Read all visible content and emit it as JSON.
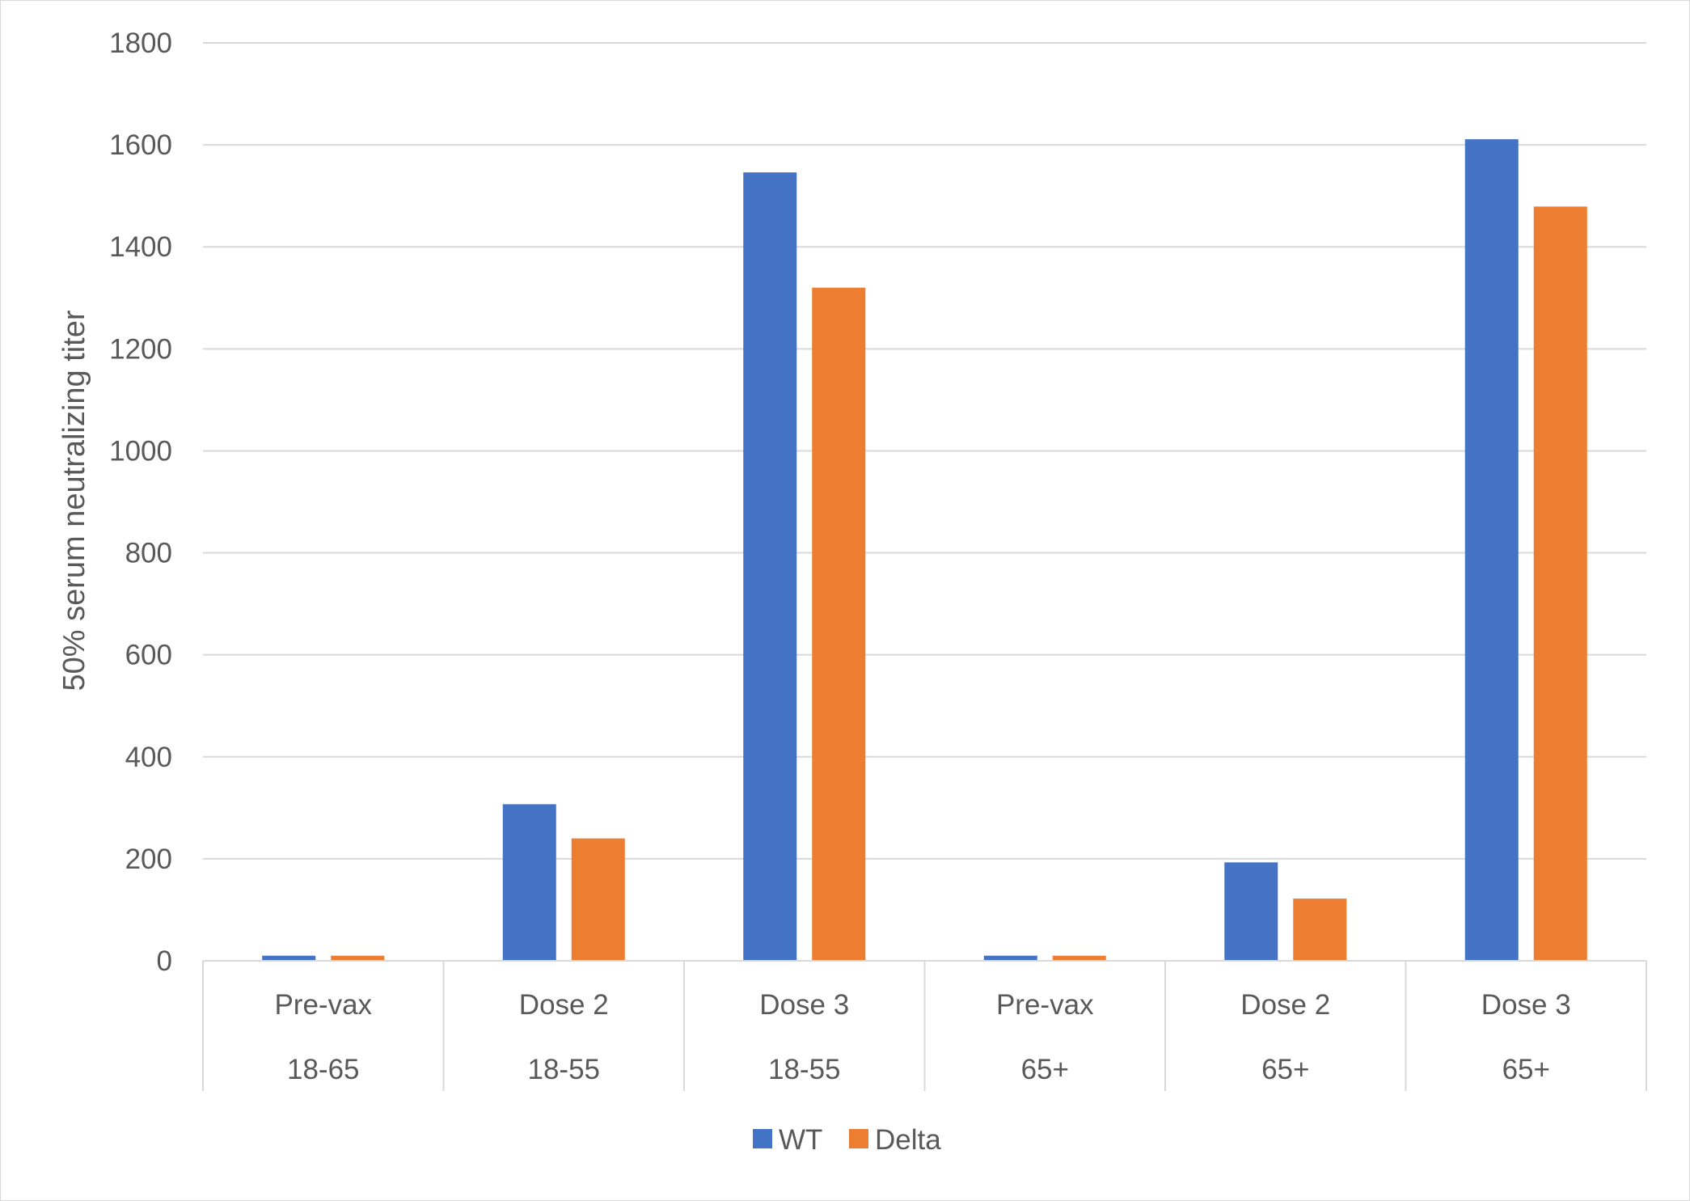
{
  "chart_data": {
    "type": "bar",
    "title": "",
    "ylabel": "50% serum neutralizing titer",
    "xlabel": "",
    "ylim": [
      0,
      1800
    ],
    "yticks": [
      0,
      200,
      400,
      600,
      800,
      1000,
      1200,
      1400,
      1600,
      1800
    ],
    "categories": [
      {
        "line1": "Pre-vax",
        "line2": "18-65"
      },
      {
        "line1": "Dose 2",
        "line2": "18-55"
      },
      {
        "line1": "Dose 3",
        "line2": "18-55"
      },
      {
        "line1": "Pre-vax",
        "line2": "65+"
      },
      {
        "line1": "Dose 2",
        "line2": "65+"
      },
      {
        "line1": "Dose 3",
        "line2": "65+"
      }
    ],
    "series": [
      {
        "name": "WT",
        "color": "#4472C4",
        "values": [
          10,
          307,
          1546,
          10,
          193,
          1611
        ]
      },
      {
        "name": "Delta",
        "color": "#ED7D31",
        "values": [
          10,
          240,
          1320,
          10,
          122,
          1479
        ]
      }
    ],
    "grid": true,
    "legend": "bottom"
  }
}
